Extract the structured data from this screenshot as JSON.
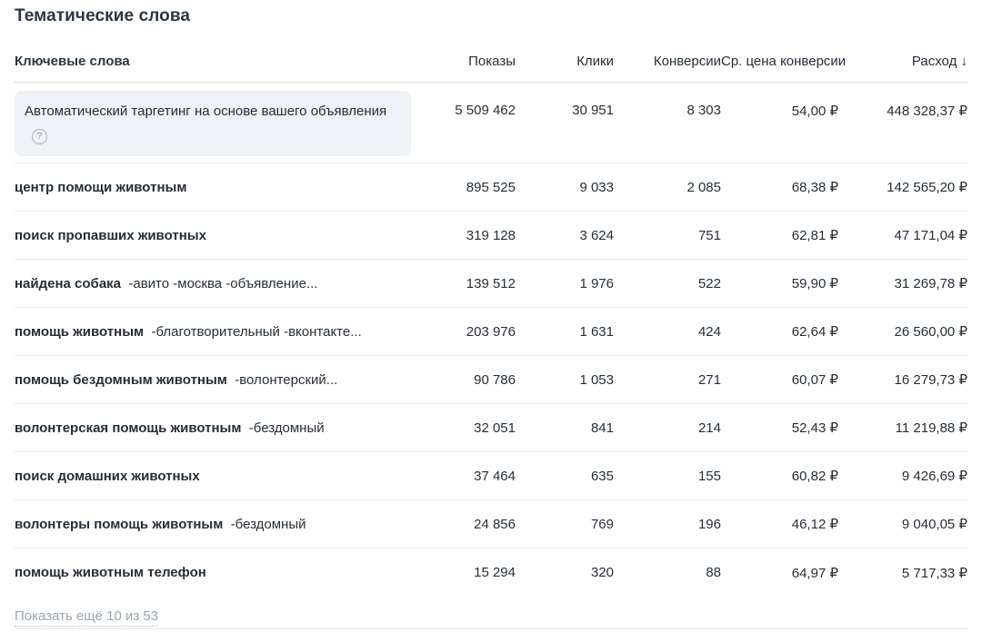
{
  "page_title": "Тематические слова",
  "table": {
    "headers": [
      "Ключевые слова",
      "Показы",
      "Клики",
      "Конверсии",
      "Ср. цена конверсии",
      "Расход"
    ],
    "sort_icon": "↓",
    "rows": [
      {
        "keyword": "Автоматический таргетинг на основе вашего объявления",
        "modifiers": "",
        "help_icon": true,
        "highlighted": true,
        "impressions": "5 509 462",
        "clicks": "30 951",
        "conversions": "8 303",
        "avg_conversion_cost": "54,00 ₽",
        "cost": "448 328,37 ₽"
      },
      {
        "keyword": "центр помощи животным",
        "modifiers": "",
        "help_icon": false,
        "highlighted": false,
        "impressions": "895 525",
        "clicks": "9 033",
        "conversions": "2 085",
        "avg_conversion_cost": "68,38 ₽",
        "cost": "142 565,20 ₽"
      },
      {
        "keyword": "поиск пропавших животных",
        "modifiers": "",
        "help_icon": false,
        "highlighted": false,
        "impressions": "319 128",
        "clicks": "3 624",
        "conversions": "751",
        "avg_conversion_cost": "62,81 ₽",
        "cost": "47 171,04 ₽"
      },
      {
        "keyword": "найдена собака",
        "modifiers": "-авито -москва -объявление...",
        "help_icon": false,
        "highlighted": false,
        "impressions": "139 512",
        "clicks": "1 976",
        "conversions": "522",
        "avg_conversion_cost": "59,90 ₽",
        "cost": "31 269,78 ₽"
      },
      {
        "keyword": "помощь животным",
        "modifiers": "-благотворительный -вконтакте...",
        "help_icon": false,
        "highlighted": false,
        "impressions": "203 976",
        "clicks": "1 631",
        "conversions": "424",
        "avg_conversion_cost": "62,64 ₽",
        "cost": "26 560,00 ₽"
      },
      {
        "keyword": "помощь бездомным животным",
        "modifiers": "-волонтерский...",
        "help_icon": false,
        "highlighted": false,
        "impressions": "90 786",
        "clicks": "1 053",
        "conversions": "271",
        "avg_conversion_cost": "60,07 ₽",
        "cost": "16 279,73 ₽"
      },
      {
        "keyword": "волонтерская помощь животным",
        "modifiers": "-бездомный",
        "help_icon": false,
        "highlighted": false,
        "impressions": "32 051",
        "clicks": "841",
        "conversions": "214",
        "avg_conversion_cost": "52,43 ₽",
        "cost": "11 219,88 ₽"
      },
      {
        "keyword": "поиск домашних животных",
        "modifiers": "",
        "help_icon": false,
        "highlighted": false,
        "impressions": "37 464",
        "clicks": "635",
        "conversions": "155",
        "avg_conversion_cost": "60,82 ₽",
        "cost": "9 426,69 ₽"
      },
      {
        "keyword": "волонтеры помощь животным",
        "modifiers": "-бездомный",
        "help_icon": false,
        "highlighted": false,
        "impressions": "24 856",
        "clicks": "769",
        "conversions": "196",
        "avg_conversion_cost": "46,12 ₽",
        "cost": "9 040,05 ₽"
      },
      {
        "keyword": "помощь животным телефон",
        "modifiers": "",
        "help_icon": false,
        "highlighted": false,
        "impressions": "15 294",
        "clicks": "320",
        "conversions": "88",
        "avg_conversion_cost": "64,97 ₽",
        "cost": "5 717,33 ₽"
      }
    ],
    "show_more_label": "Показать ещё 10 из 53",
    "help_icon_glyph": "?"
  },
  "colors": {
    "text": "#252e38",
    "highlight_row_bg": "#eef1f5",
    "separator": "#e9ebee",
    "header_separator": "#d8dade",
    "link": "#9aa5b0"
  }
}
